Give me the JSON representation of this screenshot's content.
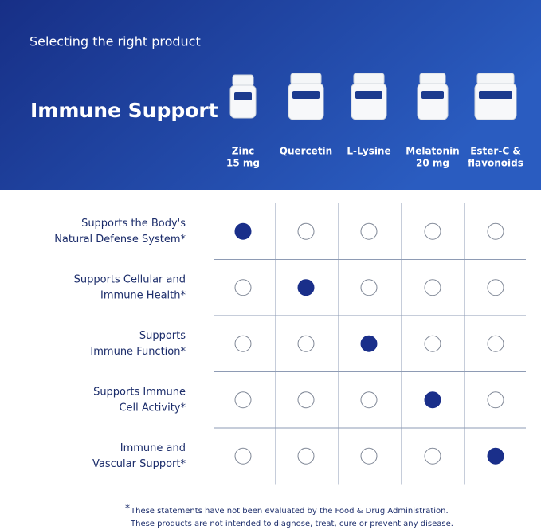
{
  "header": {
    "subtitle": "Selecting the right product",
    "title": "Immune Support"
  },
  "products": [
    {
      "lines": [
        "Zinc",
        "15 mg"
      ]
    },
    {
      "lines": [
        "Quercetin"
      ]
    },
    {
      "lines": [
        "L-Lysine"
      ]
    },
    {
      "lines": [
        "Melatonin",
        "20 mg"
      ]
    },
    {
      "lines": [
        "Ester-C &",
        "flavonoids"
      ]
    }
  ],
  "rows": [
    {
      "lines": [
        "Supports the Body's",
        "Natural Defense System*"
      ],
      "checks": [
        true,
        false,
        false,
        false,
        false
      ]
    },
    {
      "lines": [
        "Supports Cellular and",
        "Immune Health*"
      ],
      "checks": [
        false,
        true,
        false,
        false,
        false
      ]
    },
    {
      "lines": [
        "Supports",
        "Immune Function*"
      ],
      "checks": [
        false,
        false,
        true,
        false,
        false
      ]
    },
    {
      "lines": [
        "Supports Immune",
        "Cell Activity*"
      ],
      "checks": [
        false,
        false,
        false,
        true,
        false
      ]
    },
    {
      "lines": [
        "Immune and",
        "Vascular Support*"
      ],
      "checks": [
        false,
        false,
        false,
        false,
        true
      ]
    }
  ],
  "footnote": {
    "mark": "*",
    "lines": [
      "These statements have not been evaluated by the Food & Drug Administration.",
      "These products are not intended to diagnose, treat, cure or prevent any disease."
    ]
  }
}
